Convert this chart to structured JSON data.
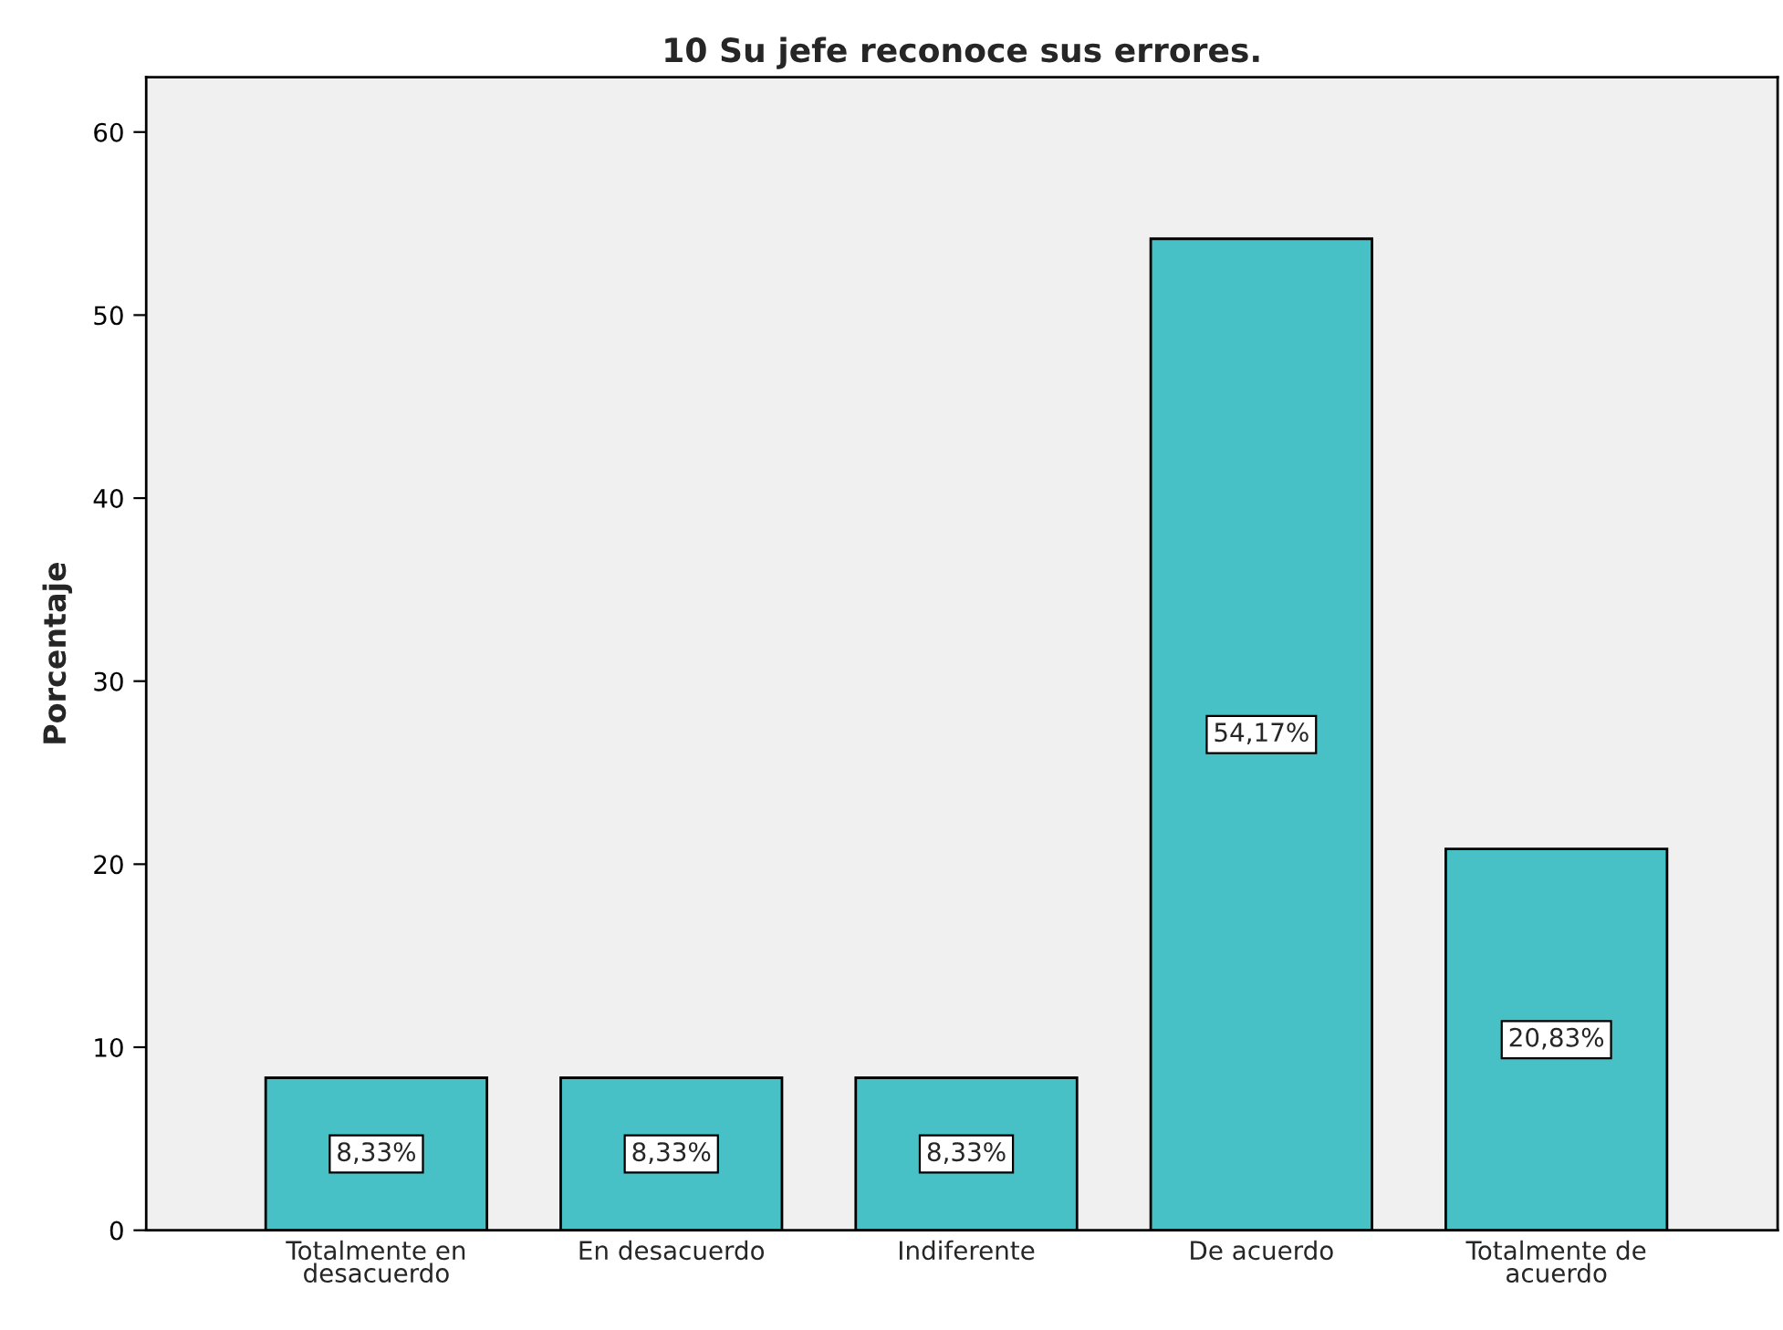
{
  "chart_data": {
    "type": "bar",
    "title": "10 Su jefe reconoce sus errores.",
    "ylabel": "Porcentaje",
    "categories": [
      "Totalmente en\ndesacuerdo",
      "En desacuerdo",
      "Indiferente",
      "De acuerdo",
      "Totalmente de\nacuerdo"
    ],
    "values": [
      8.33,
      8.33,
      8.33,
      54.17,
      20.83
    ],
    "value_labels": [
      "8,33%",
      "8,33%",
      "8,33%",
      "54,17%",
      "20,83%"
    ],
    "color": "#48c1c6",
    "ylim": [
      0,
      63
    ],
    "yticks": [
      0,
      10,
      20,
      30,
      40,
      50,
      60
    ],
    "grid": false,
    "legend": false
  }
}
